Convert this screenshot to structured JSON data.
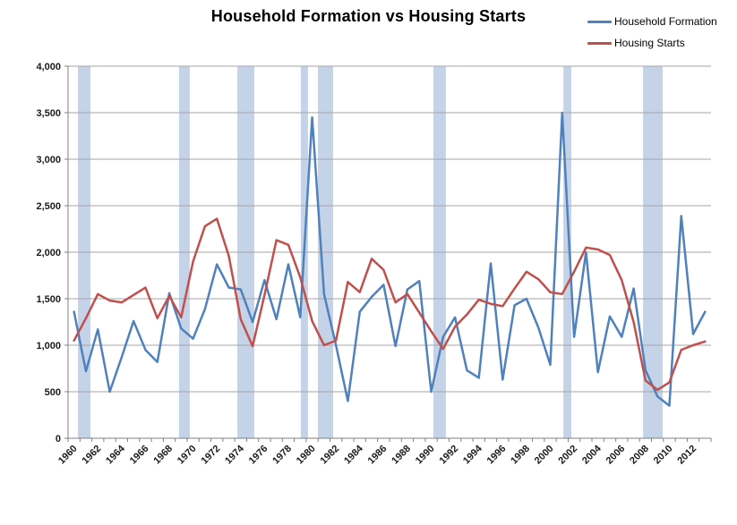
{
  "chart_data": {
    "type": "line",
    "title": "Household Formation vs Housing Starts",
    "x": [
      1960,
      1961,
      1962,
      1963,
      1964,
      1965,
      1966,
      1967,
      1968,
      1969,
      1970,
      1971,
      1972,
      1973,
      1974,
      1975,
      1976,
      1977,
      1978,
      1979,
      1980,
      1981,
      1982,
      1983,
      1984,
      1985,
      1986,
      1987,
      1988,
      1989,
      1990,
      1991,
      1992,
      1993,
      1994,
      1995,
      1996,
      1997,
      1998,
      1999,
      2000,
      2001,
      2002,
      2003,
      2004,
      2005,
      2006,
      2007,
      2008,
      2009,
      2010,
      2011,
      2012,
      2013
    ],
    "x_tick_labels": [
      "1960",
      "1962",
      "1964",
      "1966",
      "1968",
      "1970",
      "1972",
      "1974",
      "1976",
      "1978",
      "1980",
      "1982",
      "1984",
      "1986",
      "1988",
      "1990",
      "1992",
      "1994",
      "1996",
      "1998",
      "2000",
      "2002",
      "2004",
      "2006",
      "2008",
      "2010",
      "2012"
    ],
    "y_tick_labels": [
      "0",
      "500",
      "1,000",
      "1,500",
      "2,000",
      "2,500",
      "3,000",
      "3,500",
      "4,000"
    ],
    "ylim": [
      0,
      4000
    ],
    "grid": true,
    "legend_position": "top-right",
    "series": [
      {
        "name": "Household Formation",
        "color": "#4F81BD",
        "values": [
          1360,
          720,
          1170,
          500,
          870,
          1260,
          950,
          820,
          1560,
          1180,
          1070,
          1390,
          1870,
          1620,
          1600,
          1250,
          1700,
          1280,
          1870,
          1300,
          3450,
          1550,
          1000,
          400,
          1360,
          1520,
          1650,
          990,
          1600,
          1690,
          500,
          1090,
          1300,
          730,
          650,
          1880,
          630,
          1430,
          1500,
          1190,
          790,
          3500,
          1090,
          2000,
          710,
          1310,
          1090,
          1610,
          730,
          450,
          350,
          2390,
          1120,
          1360
        ]
      },
      {
        "name": "Housing Starts",
        "color": "#C0504D",
        "values": [
          1050,
          1290,
          1550,
          1480,
          1460,
          1540,
          1620,
          1290,
          1530,
          1300,
          1900,
          2280,
          2360,
          1960,
          1280,
          990,
          1540,
          2130,
          2080,
          1730,
          1260,
          1000,
          1050,
          1680,
          1570,
          1930,
          1810,
          1460,
          1550,
          1350,
          1150,
          960,
          1200,
          1330,
          1490,
          1445,
          1420,
          1610,
          1790,
          1710,
          1570,
          1550,
          1790,
          2050,
          2030,
          1970,
          1700,
          1250,
          620,
          520,
          600,
          950,
          1000,
          1040
        ]
      }
    ],
    "recession_bands": {
      "color": "#C5D3E8",
      "unit": "year-index (0 = 1960 data point)",
      "ranges": [
        [
          0.33,
          1.38
        ],
        [
          8.82,
          9.72
        ],
        [
          13.71,
          15.14
        ],
        [
          19.05,
          19.65
        ],
        [
          20.48,
          21.76
        ],
        [
          30.18,
          31.23
        ],
        [
          41.1,
          41.77
        ],
        [
          47.79,
          49.44
        ]
      ]
    }
  }
}
